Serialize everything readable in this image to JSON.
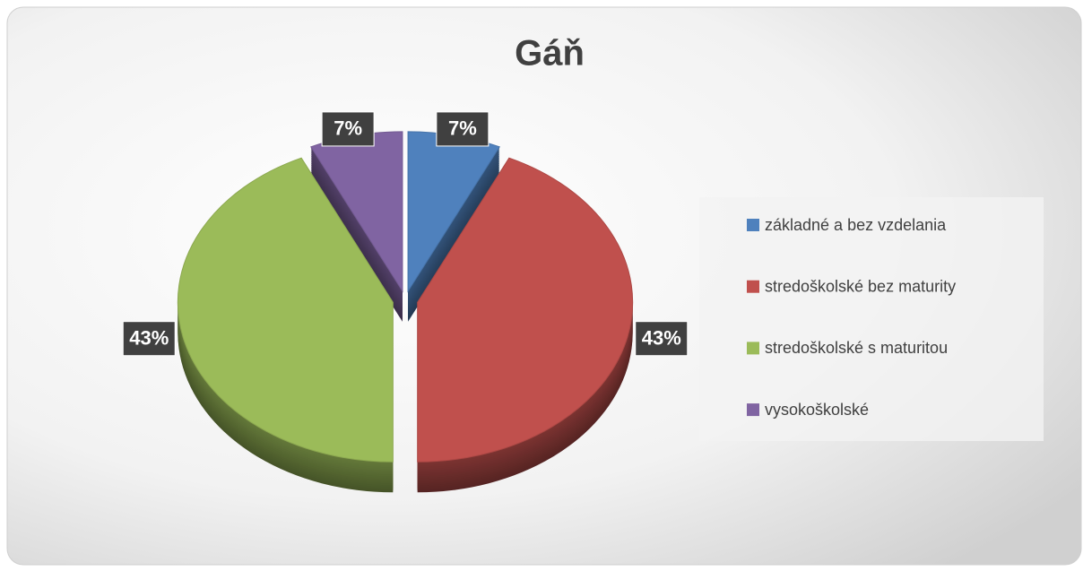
{
  "chart_data": {
    "type": "pie",
    "title": "Gáň",
    "categories": [
      "základné a bez vzdelania",
      "stredoškolské bez maturity",
      "stredoškolské s maturitou",
      "vysokoškolské"
    ],
    "values": [
      7,
      43,
      43,
      7
    ],
    "value_labels": [
      "7%",
      "43%",
      "43%",
      "7%"
    ],
    "colors": [
      "#4f81bd",
      "#c0504d",
      "#9bbb59",
      "#8064a2"
    ],
    "legend": "right"
  }
}
